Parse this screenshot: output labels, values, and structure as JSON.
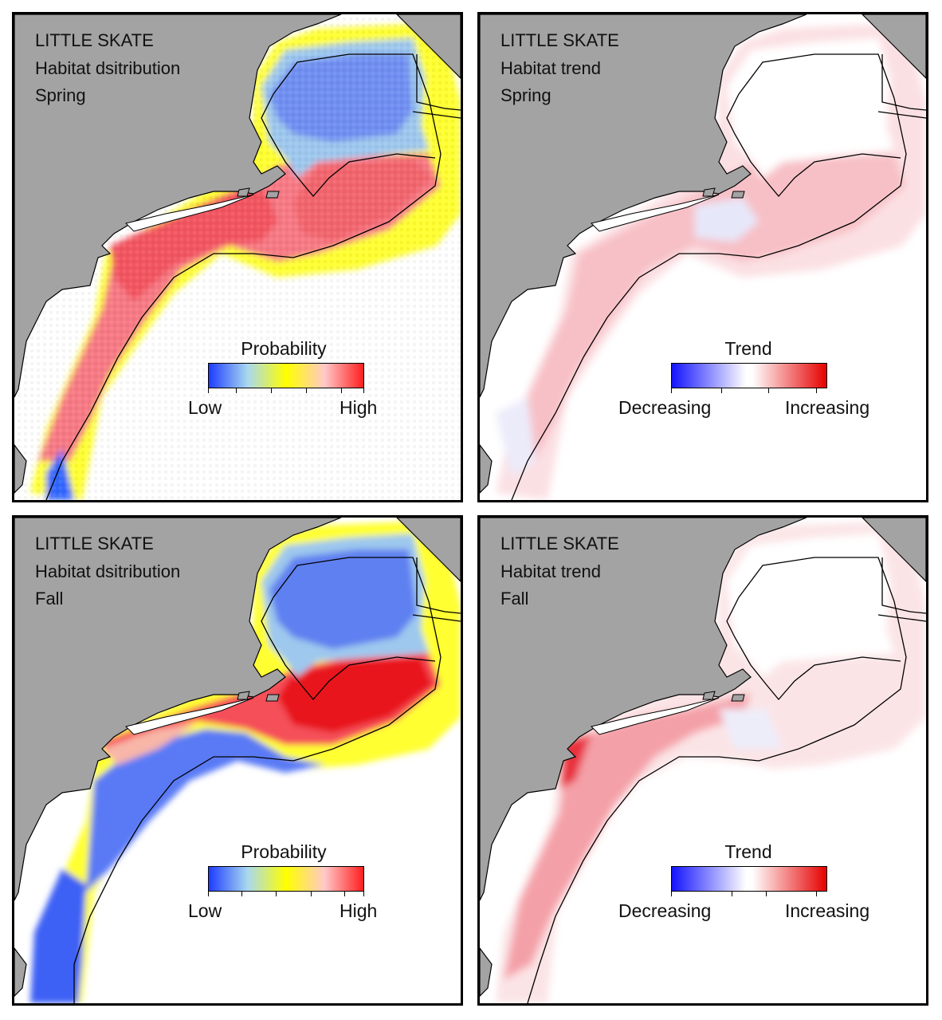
{
  "species": "LITTLE SKATE",
  "panels": [
    {
      "id": "spring-distribution",
      "lines": [
        "LITTLE SKATE",
        "Habitat dsitribution",
        "Spring"
      ],
      "kind": "distribution",
      "legend": {
        "title": "Probability",
        "low": "Low",
        "high": "High"
      }
    },
    {
      "id": "spring-trend",
      "lines": [
        "LITTLE SKATE",
        "Habitat trend",
        "Spring"
      ],
      "kind": "trend",
      "legend": {
        "title": "Trend",
        "low": "Decreasing",
        "high": "Increasing"
      }
    },
    {
      "id": "fall-distribution",
      "lines": [
        "LITTLE SKATE",
        "Habitat dsitribution",
        "Fall"
      ],
      "kind": "distribution",
      "legend": {
        "title": "Probability",
        "low": "Low",
        "high": "High"
      }
    },
    {
      "id": "fall-trend",
      "lines": [
        "LITTLE SKATE",
        "Habitat trend",
        "Fall"
      ],
      "kind": "trend",
      "legend": {
        "title": "Trend",
        "low": "Decreasing",
        "high": "Increasing"
      }
    }
  ],
  "colors": {
    "land": "#a3a3a3",
    "ocean": "#ffffff",
    "probability_scale": [
      "#1e3cff",
      "#a8d8f0",
      "#ffff00",
      "#ffc8c8",
      "#ff1e1e"
    ],
    "trend_scale": [
      "#1414ff",
      "#ffffff",
      "#e60000"
    ]
  }
}
